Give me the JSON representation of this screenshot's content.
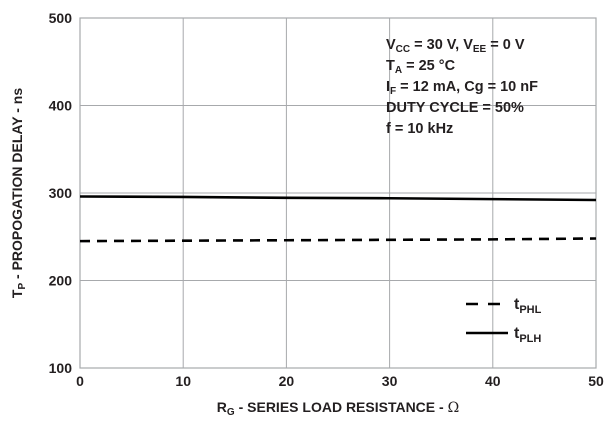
{
  "chart_data": {
    "type": "line",
    "title": "",
    "xlabel": {
      "main": "R",
      "sub": "G",
      "rest": " - SERIES LOAD RESISTANCE - ",
      "unit": "Ω"
    },
    "ylabel": {
      "main": "T",
      "sub": "P",
      "rest": " - PROPOGATION DELAY - ns"
    },
    "xlim": [
      0,
      50
    ],
    "ylim": [
      100,
      500
    ],
    "x_ticks": [
      "0",
      "10",
      "20",
      "30",
      "40",
      "50"
    ],
    "y_ticks": [
      "100",
      "200",
      "300",
      "400",
      "500"
    ],
    "grid": true,
    "series": [
      {
        "name": {
          "main": "t",
          "sub": "PHL"
        },
        "style": "dashed",
        "x": [
          0,
          10,
          20,
          30,
          40,
          50
        ],
        "y": [
          245,
          245.5,
          246,
          246.5,
          247,
          248
        ]
      },
      {
        "name": {
          "main": "t",
          "sub": "PLH"
        },
        "style": "solid",
        "x": [
          0,
          10,
          20,
          30,
          40,
          50
        ],
        "y": [
          296,
          295.5,
          294.5,
          294,
          293,
          292
        ]
      }
    ],
    "legend_position": "bottom-right",
    "annotation_position": "top-right",
    "annotations": [
      [
        {
          "t": "V",
          "s": ""
        },
        {
          "t": "CC",
          "s": "sub"
        },
        {
          "t": " = 30 V, V",
          "s": ""
        },
        {
          "t": "EE",
          "s": "sub"
        },
        {
          "t": " = 0 V",
          "s": ""
        }
      ],
      [
        {
          "t": "T",
          "s": ""
        },
        {
          "t": "A",
          "s": "sub"
        },
        {
          "t": " = 25 °C",
          "s": ""
        }
      ],
      [
        {
          "t": "I",
          "s": ""
        },
        {
          "t": "F",
          "s": "sub"
        },
        {
          "t": " = 12 mA, Cg = 10 nF",
          "s": ""
        }
      ],
      [
        {
          "t": "DUTY CYCLE = 50%",
          "s": ""
        }
      ],
      [
        {
          "t": "f = 10 kHz",
          "s": ""
        }
      ]
    ],
    "colors": {
      "line": "#000000",
      "grid": "#a7a9ac",
      "frame": "#a7a9ac",
      "text": "#231f20"
    }
  }
}
